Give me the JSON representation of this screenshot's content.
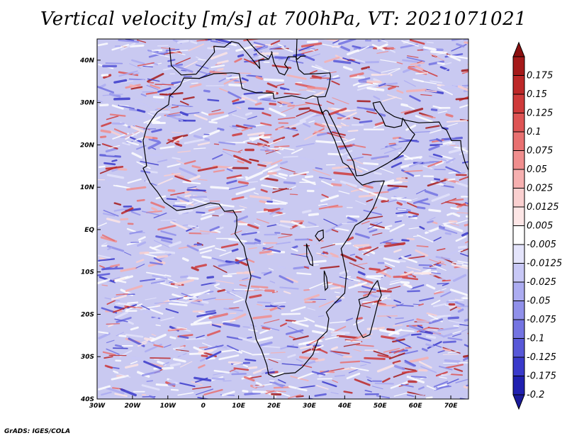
{
  "title": "Vertical velocity [m/s] at 700hPa, VT: 2021071021",
  "credit": "GrADS: IGES/COLA",
  "map": {
    "lon_range": [
      -30,
      75
    ],
    "lat_range": [
      -40,
      45
    ],
    "lon_ticks": [
      {
        "value": -30,
        "label": "30W"
      },
      {
        "value": -20,
        "label": "20W"
      },
      {
        "value": -10,
        "label": "10W"
      },
      {
        "value": 0,
        "label": "0"
      },
      {
        "value": 10,
        "label": "10E"
      },
      {
        "value": 20,
        "label": "20E"
      },
      {
        "value": 30,
        "label": "30E"
      },
      {
        "value": 40,
        "label": "40E"
      },
      {
        "value": 50,
        "label": "50E"
      },
      {
        "value": 60,
        "label": "60E"
      },
      {
        "value": 70,
        "label": "70E"
      }
    ],
    "lat_ticks": [
      {
        "value": 40,
        "label": "40N"
      },
      {
        "value": 30,
        "label": "30N"
      },
      {
        "value": 20,
        "label": "20N"
      },
      {
        "value": 10,
        "label": "10N"
      },
      {
        "value": 0,
        "label": "EQ"
      },
      {
        "value": -10,
        "label": "10S"
      },
      {
        "value": -20,
        "label": "20S"
      },
      {
        "value": -30,
        "label": "30S"
      },
      {
        "value": -40,
        "label": "40S"
      }
    ]
  },
  "colorbar": {
    "levels": [
      {
        "label": "0.175",
        "color": "#a51a1a"
      },
      {
        "label": "0.15",
        "color": "#bd2828"
      },
      {
        "label": "0.125",
        "color": "#cf3a3a"
      },
      {
        "label": "0.1",
        "color": "#de5454"
      },
      {
        "label": "0.075",
        "color": "#e87070"
      },
      {
        "label": "0.05",
        "color": "#f08e8e"
      },
      {
        "label": "0.025",
        "color": "#f6b0b0"
      },
      {
        "label": "0.0125",
        "color": "#fad0d0"
      },
      {
        "label": "0.005",
        "color": "#fde6e6"
      },
      {
        "label": "-0.005",
        "color": "#ffffff"
      },
      {
        "label": "-0.0125",
        "color": "#e4e4fb"
      },
      {
        "label": "-0.025",
        "color": "#c8c8f6"
      },
      {
        "label": "-0.05",
        "color": "#acacf1"
      },
      {
        "label": "-0.075",
        "color": "#9090ea"
      },
      {
        "label": "-0.1",
        "color": "#7474e2"
      },
      {
        "label": "-0.125",
        "color": "#5858d8"
      },
      {
        "label": "-0.175",
        "color": "#3a3acb"
      },
      {
        "label": "-0.2",
        "color": "#2020b0"
      }
    ],
    "top_cap_color": "#8b1010",
    "bottom_cap_color": "#1a1a9a",
    "zero_color": "#ffffff"
  },
  "colors": {
    "field_background": "#c9c9f1",
    "positive": "#e06060",
    "negative": "#6b6bd8",
    "coastline": "#000000"
  }
}
